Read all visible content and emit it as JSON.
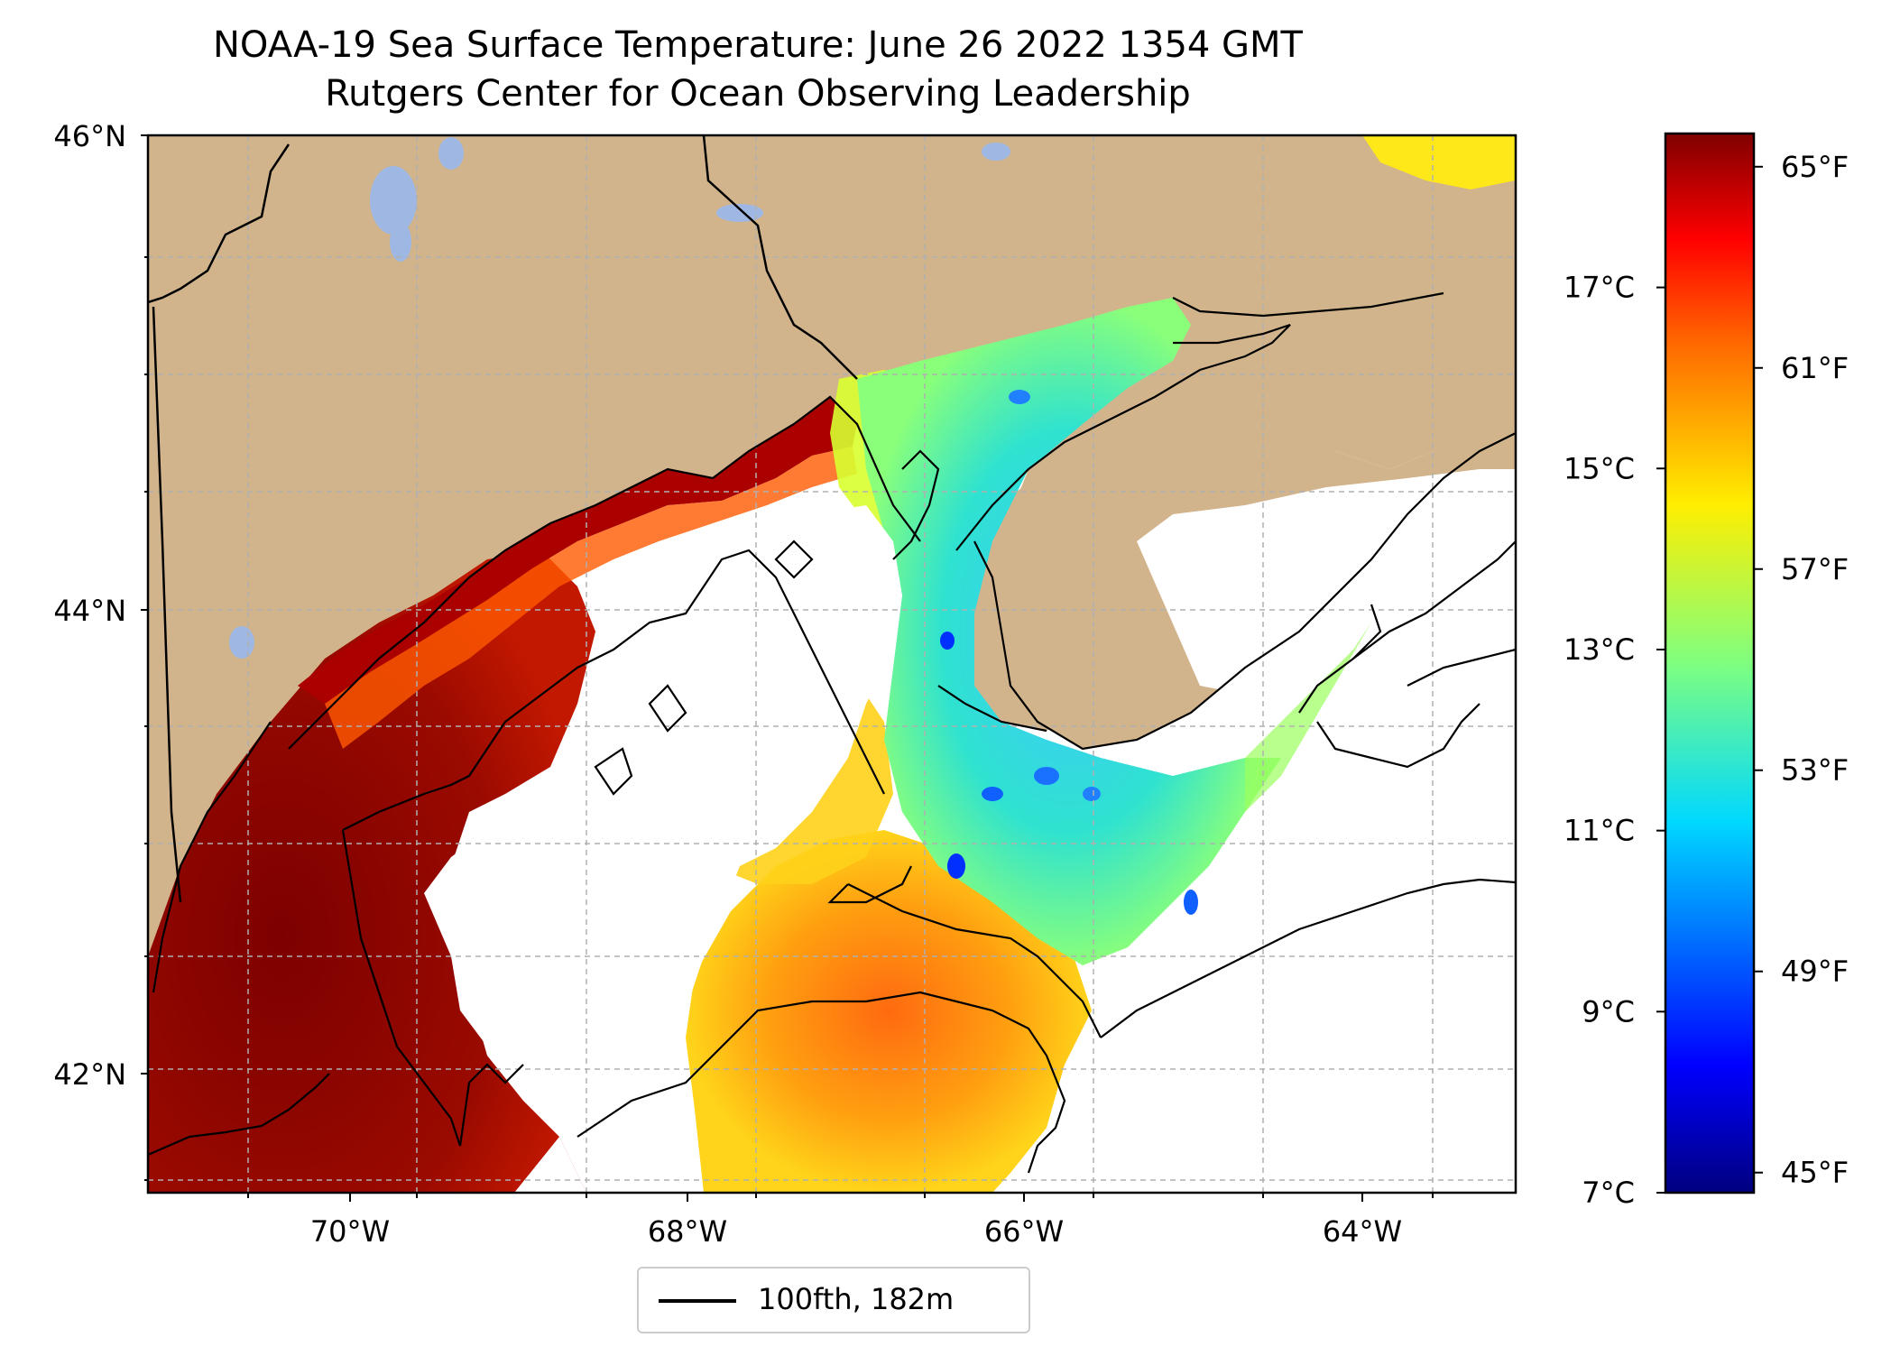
{
  "title": {
    "line1": "NOAA-19 Sea Surface Temperature: June 26 2022 1354 GMT",
    "line2": "Rutgers Center for Ocean Observing Leadership"
  },
  "map": {
    "lat_labels": [
      "46°N",
      "44°N",
      "42°N"
    ],
    "lon_labels": [
      "70°W",
      "68°W",
      "66°W",
      "64°W"
    ],
    "colors": {
      "land": "#d2b48c",
      "lakes": "#9fb8e3",
      "no_data": "#ffffff",
      "grid": "#b0b0b0"
    }
  },
  "legend": {
    "label": "100fth, 182m"
  },
  "colorbar": {
    "celsius_ticks": [
      "17°C",
      "15°C",
      "13°C",
      "11°C",
      "9°C",
      "7°C"
    ],
    "fahrenheit_ticks": [
      "65°F",
      "61°F",
      "57°F",
      "53°F",
      "49°F",
      "45°F"
    ],
    "celsius_range": [
      7,
      18.7
    ],
    "colormap": "jet"
  }
}
